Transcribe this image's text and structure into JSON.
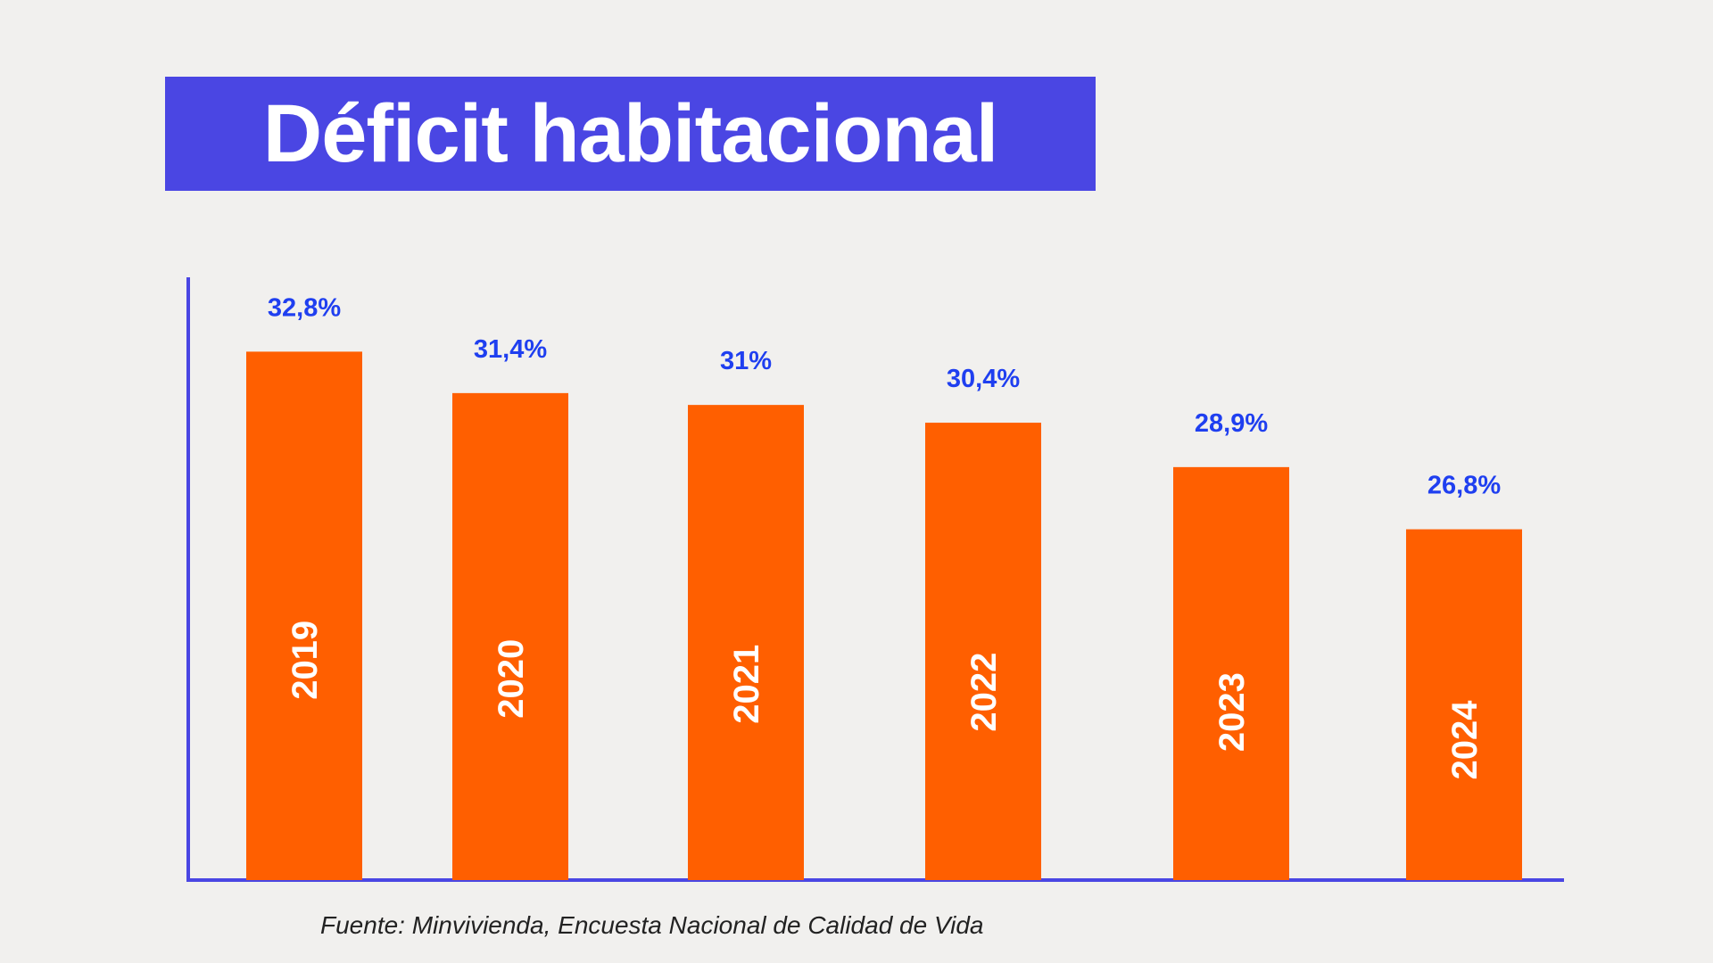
{
  "chart_data": {
    "type": "bar",
    "title": "Déficit habitacional",
    "categories": [
      "2019",
      "2020",
      "2021",
      "2022",
      "2023",
      "2024"
    ],
    "values": [
      32.8,
      31.4,
      31,
      30.4,
      28.9,
      26.8
    ],
    "data_labels": [
      "32,8%",
      "31,4%",
      "31%",
      "30,4%",
      "28,9%",
      "26,8%"
    ],
    "unit": "%",
    "xlabel": "",
    "ylabel": "",
    "grid": false,
    "colors": {
      "bar": "#ff5f00",
      "data_label": "#1f3ff0",
      "axis": "#4a46e3",
      "title_bg": "#4a46e3"
    }
  },
  "source": "Fuente: Minvivienda, Encuesta Nacional de Calidad de Vida"
}
